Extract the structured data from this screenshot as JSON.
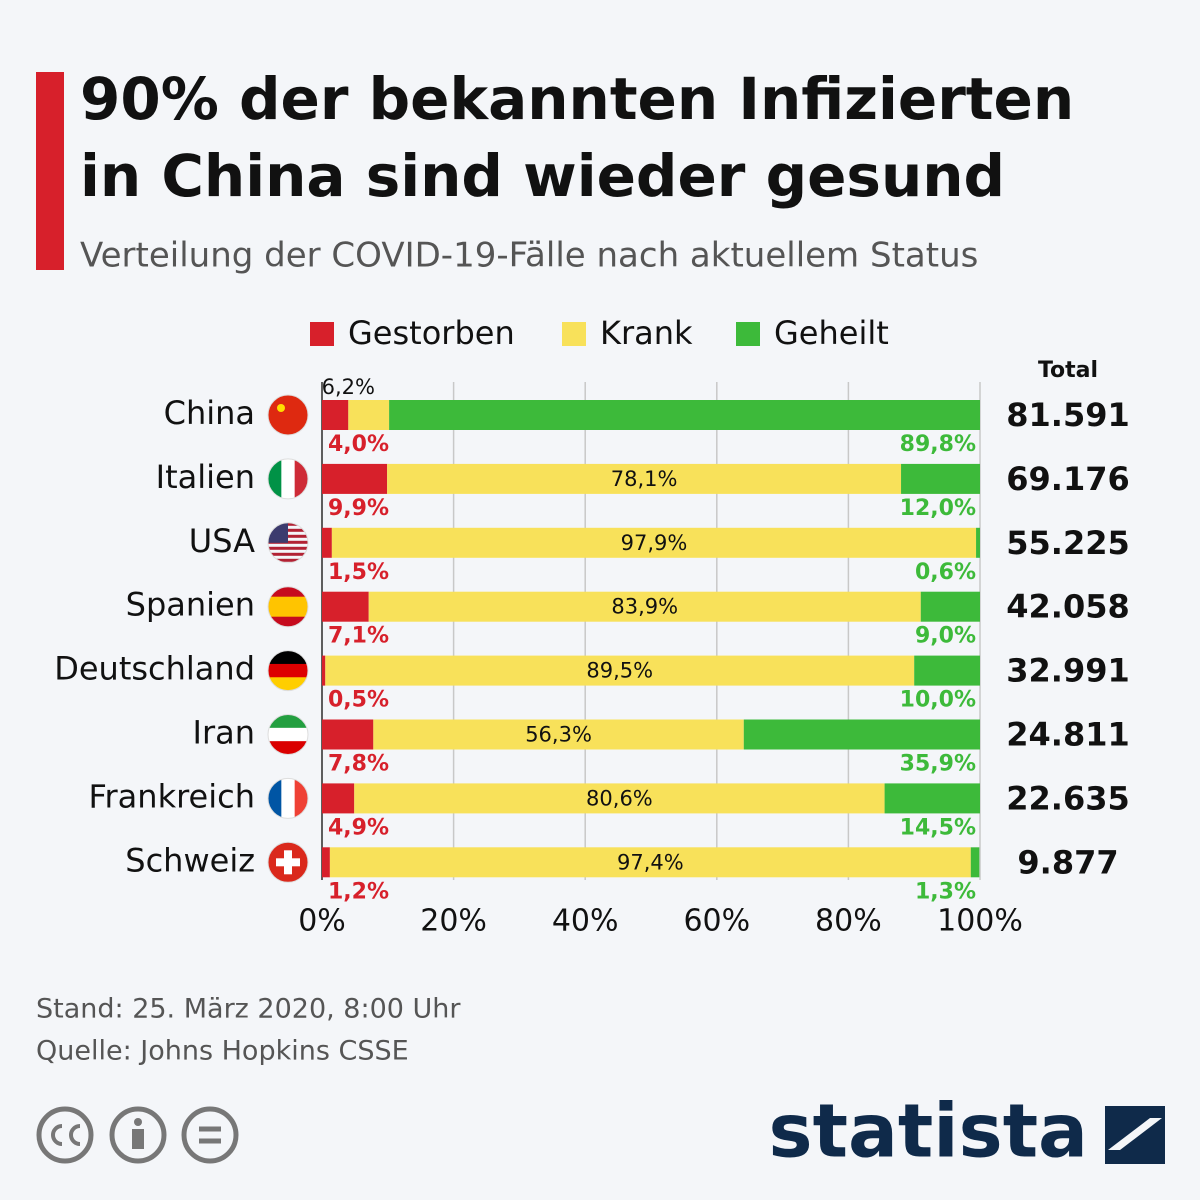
{
  "chart_data": {
    "type": "stacked-bar-horizontal",
    "title": [
      "90% der bekannten Infizierten",
      "in China sind wieder gesund"
    ],
    "subtitle": "Verteilung der COVID-19-Fälle nach aktuellem Status",
    "categories": [
      "China",
      "Italien",
      "USA",
      "Spanien",
      "Deutschland",
      "Iran",
      "Frankreich",
      "Schweiz"
    ],
    "series": [
      {
        "name": "Gestorben",
        "color": "#d7202b",
        "values": [
          4.0,
          9.9,
          1.5,
          7.1,
          0.5,
          7.8,
          4.9,
          1.2
        ],
        "value_labels": [
          "4,0%",
          "9,9%",
          "1,5%",
          "7,1%",
          "0,5%",
          "7,8%",
          "4,9%",
          "1,2%"
        ]
      },
      {
        "name": "Krank",
        "color": "#f8e15a",
        "values": [
          6.2,
          78.1,
          97.9,
          83.9,
          89.5,
          56.3,
          80.6,
          97.4
        ],
        "value_labels": [
          "6,2%",
          "78,1%",
          "97,9%",
          "83,9%",
          "89,5%",
          "56,3%",
          "80,6%",
          "97,4%"
        ]
      },
      {
        "name": "Geheilt",
        "color": "#3dba3a",
        "values": [
          89.8,
          12.0,
          0.6,
          9.0,
          10.0,
          35.9,
          14.5,
          1.3
        ],
        "value_labels": [
          "89,8%",
          "12,0%",
          "0,6%",
          "9,0%",
          "10,0%",
          "35,9%",
          "14,5%",
          "1,3%"
        ]
      }
    ],
    "totals": {
      "title": "Total",
      "values": [
        81591,
        69176,
        55225,
        42058,
        32991,
        24811,
        22635,
        9877
      ],
      "value_labels": [
        "81.591",
        "69.176",
        "55.225",
        "42.058",
        "32.991",
        "24.811",
        "22.635",
        "9.877"
      ]
    },
    "xlim": [
      0,
      100
    ],
    "xticks": [
      {
        "value": 0,
        "label": "0%"
      },
      {
        "value": 20,
        "label": "20%"
      },
      {
        "value": 40,
        "label": "40%"
      },
      {
        "value": 60,
        "label": "60%"
      },
      {
        "value": 80,
        "label": "80%"
      },
      {
        "value": 100,
        "label": "100%"
      }
    ],
    "grid": true,
    "notes": [
      "Stand: 25. März 2020, 8:00 Uhr",
      "Quelle: Johns Hopkins CSSE"
    ],
    "logo": "statista"
  }
}
